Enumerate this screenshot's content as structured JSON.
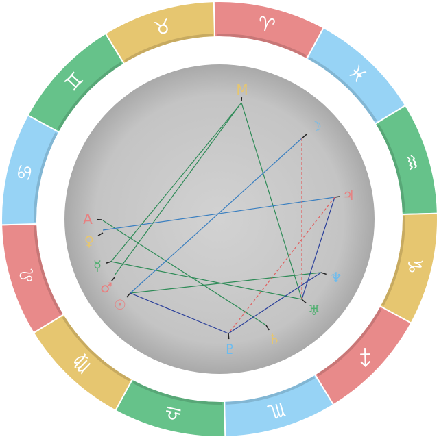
{
  "zodiac": [
    {
      "symbol": "♈",
      "color": "#e88a8a"
    },
    {
      "symbol": "♓",
      "color": "#97d3f5"
    },
    {
      "symbol": "♒",
      "color": "#66c28a"
    },
    {
      "symbol": "♑",
      "color": "#e6c670"
    },
    {
      "symbol": "♐",
      "color": "#e88a8a"
    },
    {
      "symbol": "♏",
      "color": "#97d3f5"
    },
    {
      "symbol": "♎",
      "color": "#66c28a"
    },
    {
      "symbol": "♍",
      "color": "#e6c670"
    },
    {
      "symbol": "♌",
      "color": "#e88a8a"
    },
    {
      "symbol": "♋",
      "color": "#97d3f5"
    },
    {
      "symbol": "♊",
      "color": "#66c28a"
    },
    {
      "symbol": "♉",
      "color": "#e6c670"
    }
  ],
  "points": [
    {
      "symbol": "M",
      "color": "#e6c670"
    },
    {
      "symbol": "☽",
      "color": "#6bbcf0"
    },
    {
      "symbol": "♃",
      "color": "#e88080"
    },
    {
      "symbol": "♆",
      "color": "#6bbcf0"
    },
    {
      "symbol": "♅",
      "color": "#4fb070"
    },
    {
      "symbol": "♄",
      "color": "#e6c670"
    },
    {
      "symbol": "♇",
      "color": "#6bbcf0"
    },
    {
      "symbol": "☉",
      "color": "#e88080"
    },
    {
      "symbol": "♂",
      "color": "#e88080"
    },
    {
      "symbol": "☿",
      "color": "#4fb070"
    },
    {
      "symbol": "♀",
      "color": "#e6c670"
    },
    {
      "symbol": "A",
      "color": "#e88080"
    }
  ]
}
